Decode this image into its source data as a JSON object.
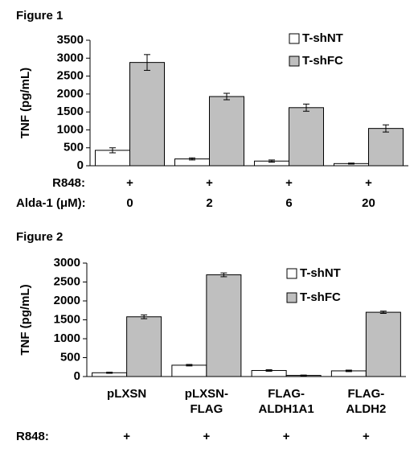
{
  "chart_data": [
    {
      "type": "bar",
      "title": "Figure 1",
      "ylabel": "TNF (pg/mL)",
      "categories": [
        "0",
        "2",
        "6",
        "20"
      ],
      "category_label": "Alda-1 (μM):",
      "treatment_label": "R848:",
      "treatment_marks": [
        "+",
        "+",
        "+",
        "+"
      ],
      "series": [
        {
          "name": "T-shNT",
          "color": "#ffffff",
          "values": [
            430,
            190,
            130,
            60
          ],
          "errors": [
            70,
            30,
            30,
            15
          ]
        },
        {
          "name": "T-shFC",
          "color": "#bfbfbf",
          "values": [
            2880,
            1930,
            1620,
            1040
          ],
          "errors": [
            220,
            90,
            100,
            100
          ]
        }
      ],
      "ylim": [
        0,
        3500
      ],
      "yticks": [
        0,
        500,
        1000,
        1500,
        2000,
        2500,
        3000,
        3500
      ]
    },
    {
      "type": "bar",
      "title": "Figure 2",
      "ylabel": "TNF (pg/mL)",
      "categories": [
        [
          "pLXSN"
        ],
        [
          "pLXSN-",
          "FLAG"
        ],
        [
          "FLAG-",
          "ALDH1A1"
        ],
        [
          "FLAG-",
          "ALDH2"
        ]
      ],
      "treatment_label": "R848:",
      "treatment_marks": [
        "+",
        "+",
        "+",
        "+"
      ],
      "series": [
        {
          "name": "T-shNT",
          "color": "#ffffff",
          "values": [
            100,
            300,
            160,
            150
          ],
          "errors": [
            15,
            20,
            20,
            20
          ]
        },
        {
          "name": "T-shFC",
          "color": "#bfbfbf",
          "values": [
            1580,
            2690,
            30,
            1700
          ],
          "errors": [
            50,
            50,
            10,
            30
          ]
        }
      ],
      "ylim": [
        0,
        3000
      ],
      "yticks": [
        0,
        500,
        1000,
        1500,
        2000,
        2500,
        3000
      ]
    }
  ]
}
